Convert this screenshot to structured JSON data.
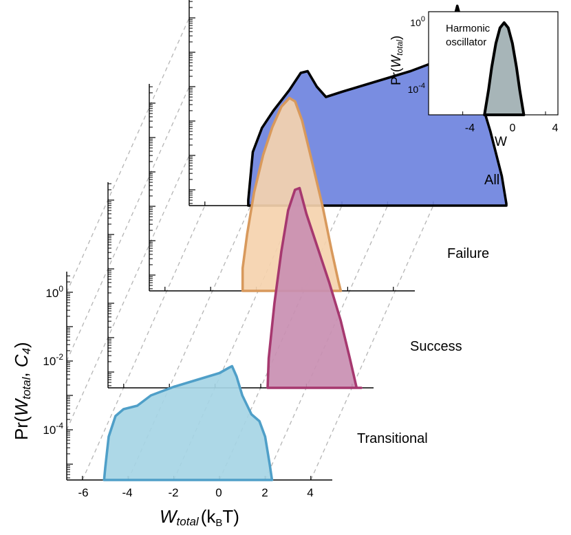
{
  "chart_data": {
    "type": "area",
    "x_axis": {
      "label": "W",
      "label_sub": "total",
      "unit_prefix": "(k",
      "unit_sub": "B",
      "unit_suffix": "T)",
      "ticks": [
        -6,
        -4,
        -2,
        0,
        2,
        4
      ],
      "tick_labels": [
        "-6",
        "-4",
        "-2",
        "0",
        "2",
        "4"
      ],
      "range": [
        -7,
        5
      ]
    },
    "y_axis": {
      "label_prefix": "Pr(",
      "label_w": "W",
      "label_w_sub": "total",
      "label_comma": ", ",
      "label_c": "C",
      "label_c_sub": "4",
      "label_close": ")",
      "scale": "log",
      "tick_labels": [
        {
          "base": "10",
          "exp": "0"
        },
        {
          "base": "10",
          "exp": "-2"
        },
        {
          "base": "10",
          "exp": "-4"
        }
      ]
    },
    "panels": [
      {
        "name": "All",
        "color": "#6e83de",
        "stroke": "#000000",
        "curve": [
          [
            -4.1,
            -5.3
          ],
          [
            -3.9,
            -3.9
          ],
          [
            -3.5,
            -3.2
          ],
          [
            -3.0,
            -2.7
          ],
          [
            -2.3,
            -2.1
          ],
          [
            -1.8,
            -1.6
          ],
          [
            -1.5,
            -1.55
          ],
          [
            -1.1,
            -2.0
          ],
          [
            -0.7,
            -2.3
          ],
          [
            0.0,
            -2.15
          ],
          [
            1.0,
            -1.95
          ],
          [
            2.0,
            -1.75
          ],
          [
            3.0,
            -1.55
          ],
          [
            4.0,
            -1.3
          ],
          [
            4.5,
            -1.05
          ],
          [
            4.8,
            -0.3
          ],
          [
            5.05,
            0.35
          ],
          [
            5.3,
            -0.25
          ],
          [
            5.6,
            -1.4
          ],
          [
            6.0,
            -2.2
          ],
          [
            6.5,
            -3.3
          ],
          [
            7.0,
            -4.6
          ],
          [
            7.2,
            -5.4
          ]
        ]
      },
      {
        "name": "Failure",
        "color": "#f5d2ae",
        "stroke": "#d8995c",
        "curve": [
          [
            -2.6,
            -6.0
          ],
          [
            -2.6,
            -4.8
          ],
          [
            -2.4,
            -3.8
          ],
          [
            -2.1,
            -2.6
          ],
          [
            -1.7,
            -1.5
          ],
          [
            -1.3,
            -0.7
          ],
          [
            -0.9,
            -0.1
          ],
          [
            -0.55,
            0.15
          ],
          [
            -0.3,
            0.05
          ],
          [
            0.0,
            -0.5
          ],
          [
            0.4,
            -1.6
          ],
          [
            0.9,
            -3.0
          ],
          [
            1.3,
            -4.3
          ],
          [
            1.6,
            -5.2
          ],
          [
            1.7,
            -6.0
          ]
        ]
      },
      {
        "name": "Success",
        "color": "#c98fb2",
        "stroke": "#a6386f",
        "curve": [
          [
            0.3,
            -6.0
          ],
          [
            0.35,
            -4.6
          ],
          [
            0.6,
            -3.0
          ],
          [
            0.9,
            -1.5
          ],
          [
            1.2,
            -0.3
          ],
          [
            1.5,
            0.3
          ],
          [
            1.7,
            0.35
          ],
          [
            2.0,
            -0.4
          ],
          [
            2.5,
            -1.4
          ],
          [
            3.0,
            -2.4
          ],
          [
            3.5,
            -3.5
          ],
          [
            3.9,
            -4.6
          ],
          [
            4.2,
            -5.5
          ],
          [
            4.4,
            -6.0
          ]
        ]
      },
      {
        "name": "Transitional",
        "color": "#a6d5e5",
        "stroke": "#4f9fc8",
        "curve": [
          [
            -5.05,
            -6.0
          ],
          [
            -5.0,
            -5.1
          ],
          [
            -4.85,
            -4.2
          ],
          [
            -4.55,
            -3.6
          ],
          [
            -4.2,
            -3.4
          ],
          [
            -3.6,
            -3.3
          ],
          [
            -3.0,
            -3.0
          ],
          [
            -2.0,
            -2.75
          ],
          [
            -1.0,
            -2.55
          ],
          [
            0.0,
            -2.35
          ],
          [
            0.4,
            -2.2
          ],
          [
            0.55,
            -2.15
          ],
          [
            0.75,
            -2.45
          ],
          [
            1.0,
            -3.0
          ],
          [
            1.4,
            -3.55
          ],
          [
            1.75,
            -3.75
          ],
          [
            2.0,
            -4.2
          ],
          [
            2.2,
            -5.0
          ],
          [
            2.3,
            -6.0
          ]
        ]
      }
    ],
    "inset": {
      "title_line1": "Harmonic",
      "title_line2": "oscillator",
      "xlabel": "W",
      "ylabel_prefix": "Pr(",
      "ylabel_w": "W",
      "ylabel_sub": "total",
      "ylabel_close": ")",
      "x_ticks": [
        -4,
        0,
        4
      ],
      "x_tick_labels": [
        "-4",
        "0",
        "4"
      ],
      "x_range": [
        -7.3,
        5.2
      ],
      "y_tick_labels": [
        {
          "base": "10",
          "exp": "0"
        },
        {
          "base": "10",
          "exp": "-4"
        }
      ],
      "color": "#a7b5b8",
      "stroke": "#000000",
      "curve": [
        [
          -1.9,
          -6.0
        ],
        [
          -1.8,
          -5.0
        ],
        [
          -1.5,
          -3.9
        ],
        [
          -1.2,
          -2.6
        ],
        [
          -0.8,
          -1.2
        ],
        [
          -0.4,
          -0.3
        ],
        [
          0.0,
          0.0
        ],
        [
          0.4,
          -0.3
        ],
        [
          0.8,
          -1.2
        ],
        [
          1.2,
          -2.6
        ],
        [
          1.5,
          -3.9
        ],
        [
          1.8,
          -5.0
        ],
        [
          1.9,
          -6.0
        ]
      ]
    }
  }
}
